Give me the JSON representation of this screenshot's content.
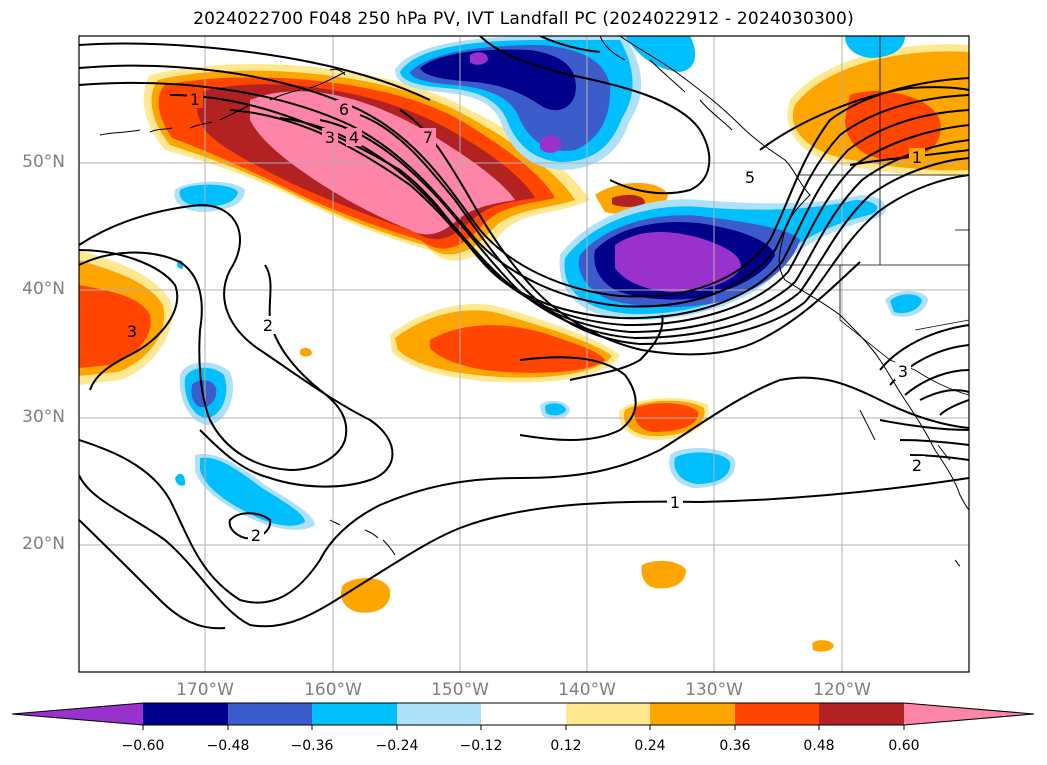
{
  "title": "2024022700 F048 250 hPa PV, IVT Landfall PC (2024022912 - 2024030300)",
  "map": {
    "lat_labels": [
      "50°N",
      "40°N",
      "30°N",
      "20°N"
    ],
    "lon_labels": [
      "170°W",
      "160°W",
      "150°W",
      "140°W",
      "130°W",
      "120°W"
    ],
    "contour_labels": [
      "1",
      "2",
      "3",
      "4",
      "5",
      "6",
      "7"
    ],
    "gridlines": true
  },
  "colorbar": {
    "ticks": [
      "−0.60",
      "−0.48",
      "−0.36",
      "−0.24",
      "−0.12",
      "0.12",
      "0.24",
      "0.36",
      "0.48",
      "0.60"
    ],
    "colors": [
      "#9932cc",
      "#00008b",
      "#3c5ccc",
      "#00bfff",
      "#aee0fa",
      "#ffffff",
      "#ffe890",
      "#ffa500",
      "#ff4500",
      "#b22222",
      "#ff85a8"
    ],
    "extend": "both"
  }
}
